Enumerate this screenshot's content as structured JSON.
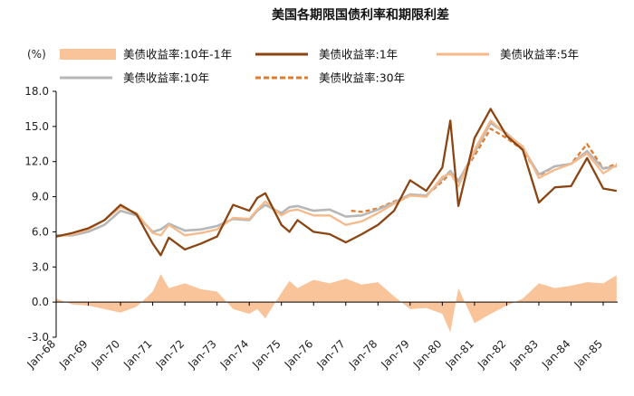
{
  "chart_data": {
    "type": "line",
    "title": "美国各期限国债利率和期限利差",
    "ylabel": "(%)",
    "xlabel": "",
    "ylim": [
      -3.0,
      18.0
    ],
    "yticks": [
      "18.0",
      "15.0",
      "12.0",
      "9.0",
      "6.0",
      "3.0",
      "0.0",
      "-3.0"
    ],
    "x_tick_labels": [
      "Jan-68",
      "Jan-69",
      "Jan-70",
      "Jan-71",
      "Jan-72",
      "Jan-73",
      "Jan-74",
      "Jan-75",
      "Jan-76",
      "Jan-77",
      "Jan-78",
      "Jan-79",
      "Jan-80",
      "Jan-81",
      "Jan-82",
      "Jan-83",
      "Jan-84",
      "Jan-85"
    ],
    "grid": false,
    "legend_position": "top",
    "colors": {
      "spread": "#f9c49a",
      "y1": "#8b4513",
      "y5": "#f6b98a",
      "y10": "#b7b7b7",
      "y30": "#e07b2c",
      "negative_tick": "#e00000"
    },
    "series": [
      {
        "name": "美债收益率:10年-1年",
        "style": "area",
        "x": [
          "1968-01",
          "1968-07",
          "1969-01",
          "1969-07",
          "1970-01",
          "1970-07",
          "1971-01",
          "1971-04",
          "1971-07",
          "1972-01",
          "1972-07",
          "1973-01",
          "1973-07",
          "1974-01",
          "1974-04",
          "1974-07",
          "1975-01",
          "1975-04",
          "1975-07",
          "1976-01",
          "1976-07",
          "1977-01",
          "1977-07",
          "1978-01",
          "1978-07",
          "1979-01",
          "1979-07",
          "1980-01",
          "1980-04",
          "1980-07",
          "1981-01",
          "1981-07",
          "1982-01",
          "1982-07",
          "1983-01",
          "1983-07",
          "1984-01",
          "1984-07",
          "1985-01",
          "1985-06"
        ],
        "values": [
          0.3,
          -0.2,
          -0.3,
          -0.6,
          -0.9,
          -0.4,
          0.9,
          2.4,
          1.2,
          1.6,
          1.1,
          0.9,
          -0.6,
          -1.0,
          -0.6,
          -1.4,
          0.8,
          1.8,
          1.2,
          1.9,
          1.6,
          2.0,
          1.5,
          1.7,
          0.5,
          -0.6,
          -0.5,
          -1.0,
          -2.6,
          1.2,
          -1.8,
          -1.0,
          -0.3,
          0.3,
          1.6,
          1.2,
          1.4,
          1.7,
          1.6,
          2.3
        ]
      },
      {
        "name": "美债收益率:1年",
        "style": "line",
        "x": [
          "1968-01",
          "1968-07",
          "1969-01",
          "1969-07",
          "1970-01",
          "1970-07",
          "1971-01",
          "1971-04",
          "1971-07",
          "1972-01",
          "1972-07",
          "1973-01",
          "1973-07",
          "1974-01",
          "1974-04",
          "1974-07",
          "1975-01",
          "1975-04",
          "1975-07",
          "1976-01",
          "1976-07",
          "1977-01",
          "1977-07",
          "1978-01",
          "1978-07",
          "1979-01",
          "1979-07",
          "1980-01",
          "1980-04",
          "1980-07",
          "1981-01",
          "1981-07",
          "1982-01",
          "1982-07",
          "1983-01",
          "1983-07",
          "1984-01",
          "1984-07",
          "1985-01",
          "1985-06"
        ],
        "values": [
          5.6,
          5.9,
          6.3,
          7.0,
          8.3,
          7.5,
          5.0,
          4.0,
          5.5,
          4.5,
          5.0,
          5.6,
          8.3,
          7.8,
          8.9,
          9.3,
          6.6,
          6.0,
          7.0,
          6.0,
          5.8,
          5.1,
          5.8,
          6.6,
          7.8,
          10.4,
          9.5,
          11.5,
          15.5,
          8.2,
          14.0,
          16.5,
          14.2,
          13.0,
          8.5,
          9.8,
          9.9,
          12.3,
          9.7,
          9.5
        ]
      },
      {
        "name": "美债收益率:5年",
        "style": "line",
        "x": [
          "1968-01",
          "1968-07",
          "1969-01",
          "1969-07",
          "1970-01",
          "1970-07",
          "1971-01",
          "1971-04",
          "1971-07",
          "1972-01",
          "1972-07",
          "1973-01",
          "1973-07",
          "1974-01",
          "1974-04",
          "1974-07",
          "1975-01",
          "1975-04",
          "1975-07",
          "1976-01",
          "1976-07",
          "1977-01",
          "1977-07",
          "1978-01",
          "1978-07",
          "1979-01",
          "1979-07",
          "1980-01",
          "1980-04",
          "1980-07",
          "1981-01",
          "1981-07",
          "1982-01",
          "1982-07",
          "1983-01",
          "1983-07",
          "1984-01",
          "1984-07",
          "1985-01",
          "1985-06"
        ],
        "values": [
          5.6,
          5.8,
          6.2,
          7.0,
          8.1,
          7.6,
          5.9,
          5.7,
          6.6,
          5.7,
          5.9,
          6.2,
          7.2,
          7.1,
          7.9,
          8.6,
          7.4,
          7.8,
          7.9,
          7.4,
          7.4,
          6.6,
          6.9,
          7.6,
          8.4,
          9.1,
          9.0,
          10.7,
          11.0,
          9.9,
          13.0,
          15.5,
          14.3,
          13.3,
          10.6,
          11.3,
          11.8,
          12.7,
          11.0,
          11.7
        ]
      },
      {
        "name": "美债收益率:10年",
        "style": "line",
        "x": [
          "1968-01",
          "1968-07",
          "1969-01",
          "1969-07",
          "1970-01",
          "1970-07",
          "1971-01",
          "1971-04",
          "1971-07",
          "1972-01",
          "1972-07",
          "1973-01",
          "1973-07",
          "1974-01",
          "1974-04",
          "1974-07",
          "1975-01",
          "1975-04",
          "1975-07",
          "1976-01",
          "1976-07",
          "1977-01",
          "1977-07",
          "1978-01",
          "1978-07",
          "1979-01",
          "1979-07",
          "1980-01",
          "1980-04",
          "1980-07",
          "1981-01",
          "1981-07",
          "1982-01",
          "1982-07",
          "1983-01",
          "1983-07",
          "1984-01",
          "1984-07",
          "1985-01",
          "1985-06"
        ],
        "values": [
          5.7,
          5.7,
          6.0,
          6.6,
          7.8,
          7.4,
          6.0,
          6.2,
          6.7,
          6.1,
          6.2,
          6.5,
          7.1,
          7.0,
          7.8,
          8.3,
          7.6,
          8.1,
          8.2,
          7.8,
          7.9,
          7.3,
          7.4,
          7.9,
          8.5,
          9.2,
          9.1,
          10.5,
          11.2,
          10.3,
          12.8,
          15.3,
          14.4,
          13.2,
          10.9,
          11.6,
          11.8,
          12.9,
          11.4,
          11.6
        ]
      },
      {
        "name": "美债收益率:30年",
        "style": "dashed",
        "x": [
          "1977-03",
          "1977-07",
          "1978-01",
          "1978-07",
          "1979-01",
          "1979-07",
          "1980-01",
          "1980-04",
          "1980-07",
          "1981-01",
          "1981-07",
          "1982-01",
          "1982-07",
          "1983-01",
          "1983-07",
          "1984-01",
          "1984-07",
          "1985-01",
          "1985-06"
        ],
        "values": [
          7.8,
          7.7,
          8.0,
          8.6,
          9.1,
          9.1,
          10.3,
          11.0,
          10.4,
          12.5,
          14.8,
          14.0,
          13.0,
          10.8,
          11.6,
          11.8,
          13.5,
          11.4,
          11.8
        ]
      }
    ]
  }
}
